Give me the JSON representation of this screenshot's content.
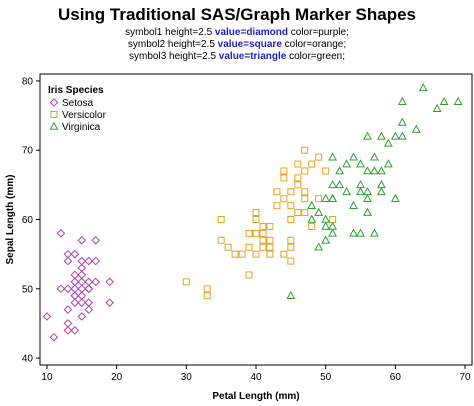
{
  "chart_data": {
    "type": "scatter",
    "title": "Using Traditional SAS/Graph Marker Shapes",
    "subtitle_lines": [
      {
        "pre": "symbol1 height=2.5 ",
        "kw": "value=diamond",
        "post": " color=purple;"
      },
      {
        "pre": "symbol2 height=2.5 ",
        "kw": "value=square",
        "post": " color=orange;"
      },
      {
        "pre": "symbol3 height=2.5 ",
        "kw": "value=triangle",
        "post": " color=green;"
      }
    ],
    "xlabel": "Petal Length (mm)",
    "ylabel": "Sepal Length (mm)",
    "xlim": [
      9,
      71
    ],
    "ylim": [
      39,
      81
    ],
    "xticks": [
      10,
      20,
      30,
      40,
      50,
      60,
      70
    ],
    "yticks": [
      40,
      50,
      60,
      70,
      80
    ],
    "grid": false,
    "legend": {
      "title": "Iris Species",
      "placement": "top-left"
    },
    "series": [
      {
        "name": "Setosa",
        "marker": "diamond",
        "color": "#b040b0",
        "points": [
          [
            10,
            46
          ],
          [
            11,
            43
          ],
          [
            12,
            58
          ],
          [
            12,
            50
          ],
          [
            13,
            44
          ],
          [
            13,
            45
          ],
          [
            13,
            47
          ],
          [
            13,
            50
          ],
          [
            13,
            54
          ],
          [
            13,
            55
          ],
          [
            14,
            44
          ],
          [
            14,
            48
          ],
          [
            14,
            49
          ],
          [
            14,
            50
          ],
          [
            14,
            51
          ],
          [
            14,
            52
          ],
          [
            14,
            55
          ],
          [
            15,
            46
          ],
          [
            15,
            48
          ],
          [
            15,
            50
          ],
          [
            15,
            51
          ],
          [
            15,
            52
          ],
          [
            15,
            53
          ],
          [
            15,
            54
          ],
          [
            15,
            57
          ],
          [
            16,
            47
          ],
          [
            16,
            48
          ],
          [
            16,
            50
          ],
          [
            16,
            51
          ],
          [
            16,
            54
          ],
          [
            17,
            51
          ],
          [
            17,
            54
          ],
          [
            17,
            57
          ],
          [
            19,
            48
          ],
          [
            19,
            51
          ],
          [
            14,
            49
          ],
          [
            15,
            49
          ],
          [
            16,
            50
          ]
        ]
      },
      {
        "name": "Versicolor",
        "marker": "square",
        "color": "#e8a020",
        "points": [
          [
            30,
            51
          ],
          [
            33,
            49
          ],
          [
            33,
            50
          ],
          [
            35,
            57
          ],
          [
            35,
            60
          ],
          [
            36,
            56
          ],
          [
            37,
            55
          ],
          [
            38,
            55
          ],
          [
            39,
            52
          ],
          [
            39,
            56
          ],
          [
            39,
            58
          ],
          [
            40,
            55
          ],
          [
            40,
            58
          ],
          [
            40,
            60
          ],
          [
            40,
            61
          ],
          [
            41,
            56
          ],
          [
            41,
            57
          ],
          [
            41,
            58
          ],
          [
            42,
            56
          ],
          [
            42,
            57
          ],
          [
            42,
            59
          ],
          [
            43,
            62
          ],
          [
            44,
            55
          ],
          [
            44,
            63
          ],
          [
            44,
            66
          ],
          [
            44,
            67
          ],
          [
            45,
            54
          ],
          [
            45,
            56
          ],
          [
            45,
            57
          ],
          [
            45,
            60
          ],
          [
            45,
            62
          ],
          [
            45,
            64
          ],
          [
            46,
            61
          ],
          [
            46,
            65
          ],
          [
            46,
            66
          ],
          [
            47,
            61
          ],
          [
            47,
            63
          ],
          [
            47,
            67
          ],
          [
            47,
            70
          ],
          [
            48,
            59
          ],
          [
            48,
            68
          ],
          [
            49,
            63
          ],
          [
            49,
            69
          ],
          [
            50,
            67
          ],
          [
            51,
            60
          ],
          [
            42,
            55
          ],
          [
            43,
            64
          ],
          [
            47,
            64
          ],
          [
            46,
            68
          ],
          [
            41,
            59
          ]
        ]
      },
      {
        "name": "Virginica",
        "marker": "triangle",
        "color": "#30a030",
        "points": [
          [
            45,
            49
          ],
          [
            48,
            62
          ],
          [
            48,
            60
          ],
          [
            49,
            56
          ],
          [
            49,
            61
          ],
          [
            50,
            57
          ],
          [
            50,
            60
          ],
          [
            50,
            63
          ],
          [
            51,
            58
          ],
          [
            51,
            59
          ],
          [
            51,
            63
          ],
          [
            51,
            65
          ],
          [
            51,
            69
          ],
          [
            52,
            65
          ],
          [
            52,
            67
          ],
          [
            53,
            64
          ],
          [
            53,
            68
          ],
          [
            54,
            62
          ],
          [
            54,
            69
          ],
          [
            55,
            64
          ],
          [
            55,
            65
          ],
          [
            55,
            68
          ],
          [
            56,
            61
          ],
          [
            56,
            63
          ],
          [
            56,
            64
          ],
          [
            56,
            67
          ],
          [
            57,
            67
          ],
          [
            57,
            69
          ],
          [
            57,
            58
          ],
          [
            58,
            65
          ],
          [
            58,
            67
          ],
          [
            58,
            72
          ],
          [
            59,
            68
          ],
          [
            59,
            71
          ],
          [
            60,
            63
          ],
          [
            60,
            72
          ],
          [
            61,
            74
          ],
          [
            61,
            77
          ],
          [
            61,
            72
          ],
          [
            63,
            73
          ],
          [
            64,
            79
          ],
          [
            66,
            76
          ],
          [
            67,
            77
          ],
          [
            69,
            77
          ],
          [
            51,
            63
          ],
          [
            58,
            64
          ],
          [
            54,
            58
          ],
          [
            56,
            72
          ],
          [
            55,
            58
          ],
          [
            50,
            59
          ]
        ]
      }
    ]
  }
}
